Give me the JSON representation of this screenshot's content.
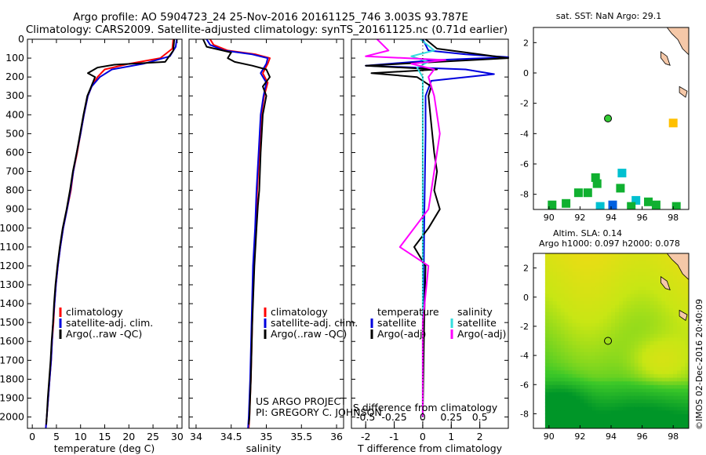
{
  "header": {
    "title_line1": "Argo profile: AO 5904723_24 25-Nov-2016 20161125_746 3.003S 93.787E",
    "title_line2": "Climatology: CARS2009. Satellite-adjusted climatology: synTS_20161125.nc (0.71d earlier)"
  },
  "credits": {
    "project": "US ARGO PROJECT",
    "pi": "PI: GREGORY C. JOHNSON",
    "stamp": "©IMOS 02-Dec-2016 20:40:09"
  },
  "colors": {
    "climatology": "#ff0000",
    "satellite": "#0000dd",
    "argo": "#000000",
    "sal_satellite": "#33dddd",
    "sal_argo": "#ff00ff"
  },
  "chart_data": [
    {
      "type": "line",
      "id": "temperature",
      "xlabel": "temperature (deg C)",
      "xlim": [
        -1,
        31
      ],
      "ylim": [
        2060,
        0
      ],
      "xticks": [
        0,
        5,
        10,
        15,
        20,
        25,
        30
      ],
      "yticks": [
        0,
        100,
        200,
        300,
        400,
        500,
        600,
        700,
        800,
        900,
        1000,
        1100,
        1200,
        1300,
        1400,
        1500,
        1600,
        1700,
        1800,
        1900,
        2000
      ],
      "legend": [
        "climatology",
        "satellite-adj. clim.",
        "Argo(..raw -QC)"
      ],
      "series": [
        {
          "name": "climatology",
          "points": [
            [
              29.2,
              0
            ],
            [
              29.0,
              50
            ],
            [
              26.5,
              100
            ],
            [
              20,
              130
            ],
            [
              15,
              160
            ],
            [
              13.5,
              200
            ],
            [
              12.3,
              250
            ],
            [
              11.5,
              300
            ],
            [
              10.7,
              400
            ],
            [
              10.0,
              500
            ],
            [
              9.3,
              600
            ],
            [
              8.5,
              700
            ],
            [
              8.0,
              800
            ],
            [
              7.2,
              900
            ],
            [
              6.4,
              1000
            ],
            [
              5.8,
              1100
            ],
            [
              5.3,
              1200
            ],
            [
              4.9,
              1300
            ],
            [
              4.6,
              1400
            ],
            [
              4.4,
              1500
            ],
            [
              4.1,
              1600
            ],
            [
              3.9,
              1700
            ],
            [
              3.6,
              1800
            ],
            [
              3.3,
              1900
            ],
            [
              3.0,
              2000
            ],
            [
              2.8,
              2060
            ]
          ]
        },
        {
          "name": "satellite",
          "points": [
            [
              29.9,
              0
            ],
            [
              29.7,
              40
            ],
            [
              28.5,
              90
            ],
            [
              23,
              130
            ],
            [
              16.5,
              160
            ],
            [
              14.0,
              200
            ],
            [
              12.3,
              250
            ],
            [
              11.5,
              300
            ],
            [
              10.7,
              400
            ],
            [
              10.0,
              500
            ],
            [
              9.2,
              600
            ],
            [
              8.5,
              700
            ],
            [
              7.9,
              800
            ],
            [
              7.2,
              900
            ],
            [
              6.4,
              1000
            ],
            [
              5.8,
              1100
            ],
            [
              5.3,
              1200
            ],
            [
              4.9,
              1300
            ],
            [
              4.6,
              1400
            ],
            [
              4.3,
              1500
            ],
            [
              4.1,
              1600
            ],
            [
              3.9,
              1700
            ],
            [
              3.6,
              1800
            ],
            [
              3.3,
              1900
            ],
            [
              3.0,
              2000
            ],
            [
              2.8,
              2060
            ]
          ]
        },
        {
          "name": "argo",
          "points": [
            [
              29.4,
              0
            ],
            [
              29.2,
              60
            ],
            [
              27.5,
              120
            ],
            [
              17,
              135
            ],
            [
              13.5,
              150
            ],
            [
              11.5,
              180
            ],
            [
              13.0,
              200
            ],
            [
              12.2,
              250
            ],
            [
              11.4,
              300
            ],
            [
              10.6,
              400
            ],
            [
              9.9,
              500
            ],
            [
              9.2,
              600
            ],
            [
              8.4,
              700
            ],
            [
              7.8,
              800
            ],
            [
              7.1,
              900
            ],
            [
              6.3,
              1000
            ],
            [
              5.7,
              1100
            ],
            [
              5.2,
              1200
            ],
            [
              4.8,
              1300
            ],
            [
              4.5,
              1400
            ],
            [
              4.3,
              1500
            ],
            [
              4.0,
              1600
            ],
            [
              3.8,
              1700
            ],
            [
              3.5,
              1800
            ],
            [
              3.2,
              1900
            ],
            [
              3.0,
              2000
            ],
            [
              2.9,
              2040
            ]
          ]
        }
      ]
    },
    {
      "type": "line",
      "id": "salinity",
      "xlabel": "salinity",
      "xlim": [
        33.9,
        36.1
      ],
      "ylim": [
        2060,
        0
      ],
      "xticks": [
        34,
        34.5,
        35,
        35.5,
        36
      ],
      "legend": [
        "climatology",
        "satellite-adj. clim.",
        "Argo(..raw -QC)"
      ],
      "series": [
        {
          "name": "climatology",
          "points": [
            [
              34.2,
              0
            ],
            [
              34.25,
              30
            ],
            [
              34.45,
              60
            ],
            [
              34.85,
              80
            ],
            [
              35.05,
              100
            ],
            [
              35.02,
              130
            ],
            [
              34.95,
              180
            ],
            [
              35.02,
              230
            ],
            [
              34.97,
              300
            ],
            [
              34.93,
              400
            ],
            [
              34.9,
              600
            ],
            [
              34.87,
              800
            ],
            [
              34.85,
              1000
            ],
            [
              34.82,
              1200
            ],
            [
              34.8,
              1500
            ],
            [
              34.78,
              1800
            ],
            [
              34.76,
              2000
            ],
            [
              34.75,
              2060
            ]
          ]
        },
        {
          "name": "satellite",
          "points": [
            [
              34.15,
              0
            ],
            [
              34.2,
              30
            ],
            [
              34.4,
              60
            ],
            [
              34.8,
              80
            ],
            [
              35.02,
              100
            ],
            [
              35.0,
              130
            ],
            [
              34.92,
              180
            ],
            [
              35.0,
              230
            ],
            [
              34.96,
              300
            ],
            [
              34.92,
              400
            ],
            [
              34.89,
              600
            ],
            [
              34.86,
              800
            ],
            [
              34.84,
              1000
            ],
            [
              34.81,
              1200
            ],
            [
              34.79,
              1500
            ],
            [
              34.77,
              1800
            ],
            [
              34.75,
              2000
            ],
            [
              34.74,
              2060
            ]
          ]
        },
        {
          "name": "argo",
          "points": [
            [
              34.1,
              0
            ],
            [
              34.15,
              40
            ],
            [
              34.5,
              70
            ],
            [
              34.45,
              100
            ],
            [
              34.55,
              120
            ],
            [
              34.8,
              140
            ],
            [
              35.0,
              160
            ],
            [
              35.05,
              200
            ],
            [
              34.95,
              250
            ],
            [
              35.0,
              300
            ],
            [
              34.95,
              400
            ],
            [
              34.92,
              600
            ],
            [
              34.9,
              800
            ],
            [
              34.88,
              880
            ],
            [
              34.86,
              1000
            ],
            [
              34.83,
              1200
            ],
            [
              34.8,
              1500
            ],
            [
              34.78,
              1800
            ],
            [
              34.76,
              2000
            ],
            [
              34.75,
              2040
            ]
          ]
        }
      ]
    },
    {
      "type": "line",
      "id": "difference",
      "xlabel": "T difference from climatology",
      "xlabel_top": "S difference from climatology",
      "xlim": [
        -2.5,
        3
      ],
      "ylim": [
        2060,
        0
      ],
      "xticks": [
        -2,
        -1,
        0,
        1,
        2
      ],
      "xticks_top": [
        -0.5,
        -0.25,
        0,
        0.25,
        0.5
      ],
      "legend_left_title": "temperature",
      "legend_left": [
        "satellite",
        "Argo(-adj)"
      ],
      "legend_right_title": "salinity",
      "legend_right": [
        "satellite",
        "Argo(-adj)"
      ],
      "series": [
        {
          "name": "temp_satellite",
          "points": [
            [
              0,
              0
            ],
            [
              0.2,
              60
            ],
            [
              1.5,
              80
            ],
            [
              3,
              95
            ],
            [
              0.5,
              110
            ],
            [
              -2,
              140
            ],
            [
              1.5,
              160
            ],
            [
              2.5,
              185
            ],
            [
              0.3,
              220
            ],
            [
              0.1,
              300
            ],
            [
              0.1,
              500
            ],
            [
              0.05,
              1000
            ],
            [
              0.02,
              1500
            ],
            [
              0,
              2000
            ]
          ]
        },
        {
          "name": "temp_argo",
          "points": [
            [
              0.1,
              0
            ],
            [
              0.5,
              50
            ],
            [
              2,
              80
            ],
            [
              3,
              100
            ],
            [
              -2,
              140
            ],
            [
              0.5,
              160
            ],
            [
              -1.8,
              180
            ],
            [
              -0.2,
              200
            ],
            [
              0.3,
              250
            ],
            [
              0.2,
              300
            ],
            [
              0.3,
              450
            ],
            [
              0.4,
              600
            ],
            [
              0.5,
              700
            ],
            [
              0.4,
              800
            ],
            [
              0.6,
              900
            ],
            [
              0.2,
              1000
            ],
            [
              -0.3,
              1100
            ],
            [
              0.1,
              1200
            ],
            [
              0.05,
              1500
            ],
            [
              0,
              2000
            ]
          ]
        },
        {
          "name": "sal_satellite",
          "points": [
            [
              -0.02,
              0
            ],
            [
              0.1,
              60
            ],
            [
              -0.1,
              90
            ],
            [
              0.05,
              120
            ],
            [
              -0.05,
              150
            ],
            [
              0,
              200
            ],
            [
              0,
              500
            ],
            [
              0,
              1000
            ],
            [
              0,
              1500
            ],
            [
              0,
              2000
            ]
          ]
        },
        {
          "name": "sal_argo",
          "points": [
            [
              -0.4,
              0
            ],
            [
              -0.3,
              60
            ],
            [
              -0.5,
              90
            ],
            [
              0.2,
              110
            ],
            [
              -0.1,
              130
            ],
            [
              0.1,
              160
            ],
            [
              0.05,
              200
            ],
            [
              0.1,
              300
            ],
            [
              0.15,
              500
            ],
            [
              0.1,
              700
            ],
            [
              0.05,
              900
            ],
            [
              -0.2,
              1100
            ],
            [
              0.05,
              1200
            ],
            [
              0,
              1500
            ],
            [
              0,
              2000
            ]
          ]
        }
      ]
    },
    {
      "type": "scatter",
      "id": "sst_map",
      "title": "sat. SST: NaN Argo: 29.1",
      "xlim": [
        89,
        99
      ],
      "ylim": [
        -9,
        3
      ],
      "xticks": [
        90,
        92,
        94,
        96,
        98
      ],
      "yticks": [
        2,
        0,
        -2,
        -4,
        -6,
        -8
      ],
      "argo_position": [
        93.8,
        -3.0
      ],
      "pixels": [
        {
          "x": 98,
          "y": -3.3,
          "c": "#ffc000"
        },
        {
          "x": 94.7,
          "y": -6.6,
          "c": "#00c0d0"
        },
        {
          "x": 93,
          "y": -6.9,
          "c": "#10b030"
        },
        {
          "x": 93.1,
          "y": -7.3,
          "c": "#10b030"
        },
        {
          "x": 94.6,
          "y": -7.6,
          "c": "#10b030"
        },
        {
          "x": 91.9,
          "y": -7.9,
          "c": "#10b030"
        },
        {
          "x": 92.5,
          "y": -7.9,
          "c": "#10b030"
        },
        {
          "x": 95.6,
          "y": -8.4,
          "c": "#00c0d0"
        },
        {
          "x": 91.1,
          "y": -8.6,
          "c": "#10b030"
        },
        {
          "x": 90.2,
          "y": -8.7,
          "c": "#10b030"
        },
        {
          "x": 96.4,
          "y": -8.5,
          "c": "#10b030"
        },
        {
          "x": 96.9,
          "y": -8.7,
          "c": "#10b030"
        },
        {
          "x": 94.1,
          "y": -8.7,
          "c": "#0060e0"
        },
        {
          "x": 93.3,
          "y": -8.8,
          "c": "#00c0d0"
        },
        {
          "x": 98.2,
          "y": -8.8,
          "c": "#10b030"
        },
        {
          "x": 95.3,
          "y": -8.8,
          "c": "#10b030"
        }
      ]
    },
    {
      "type": "heatmap",
      "id": "sla_map",
      "title_line1": "Altim. SLA: 0.14",
      "title_line2": "Argo h1000: 0.097 h2000: 0.078",
      "xlim": [
        89,
        99
      ],
      "ylim": [
        -9,
        3
      ],
      "xticks": [
        90,
        92,
        94,
        96,
        98
      ],
      "yticks": [
        2,
        0,
        -2,
        -4,
        -6,
        -8
      ],
      "argo_position": [
        93.8,
        -3.0
      ]
    }
  ]
}
